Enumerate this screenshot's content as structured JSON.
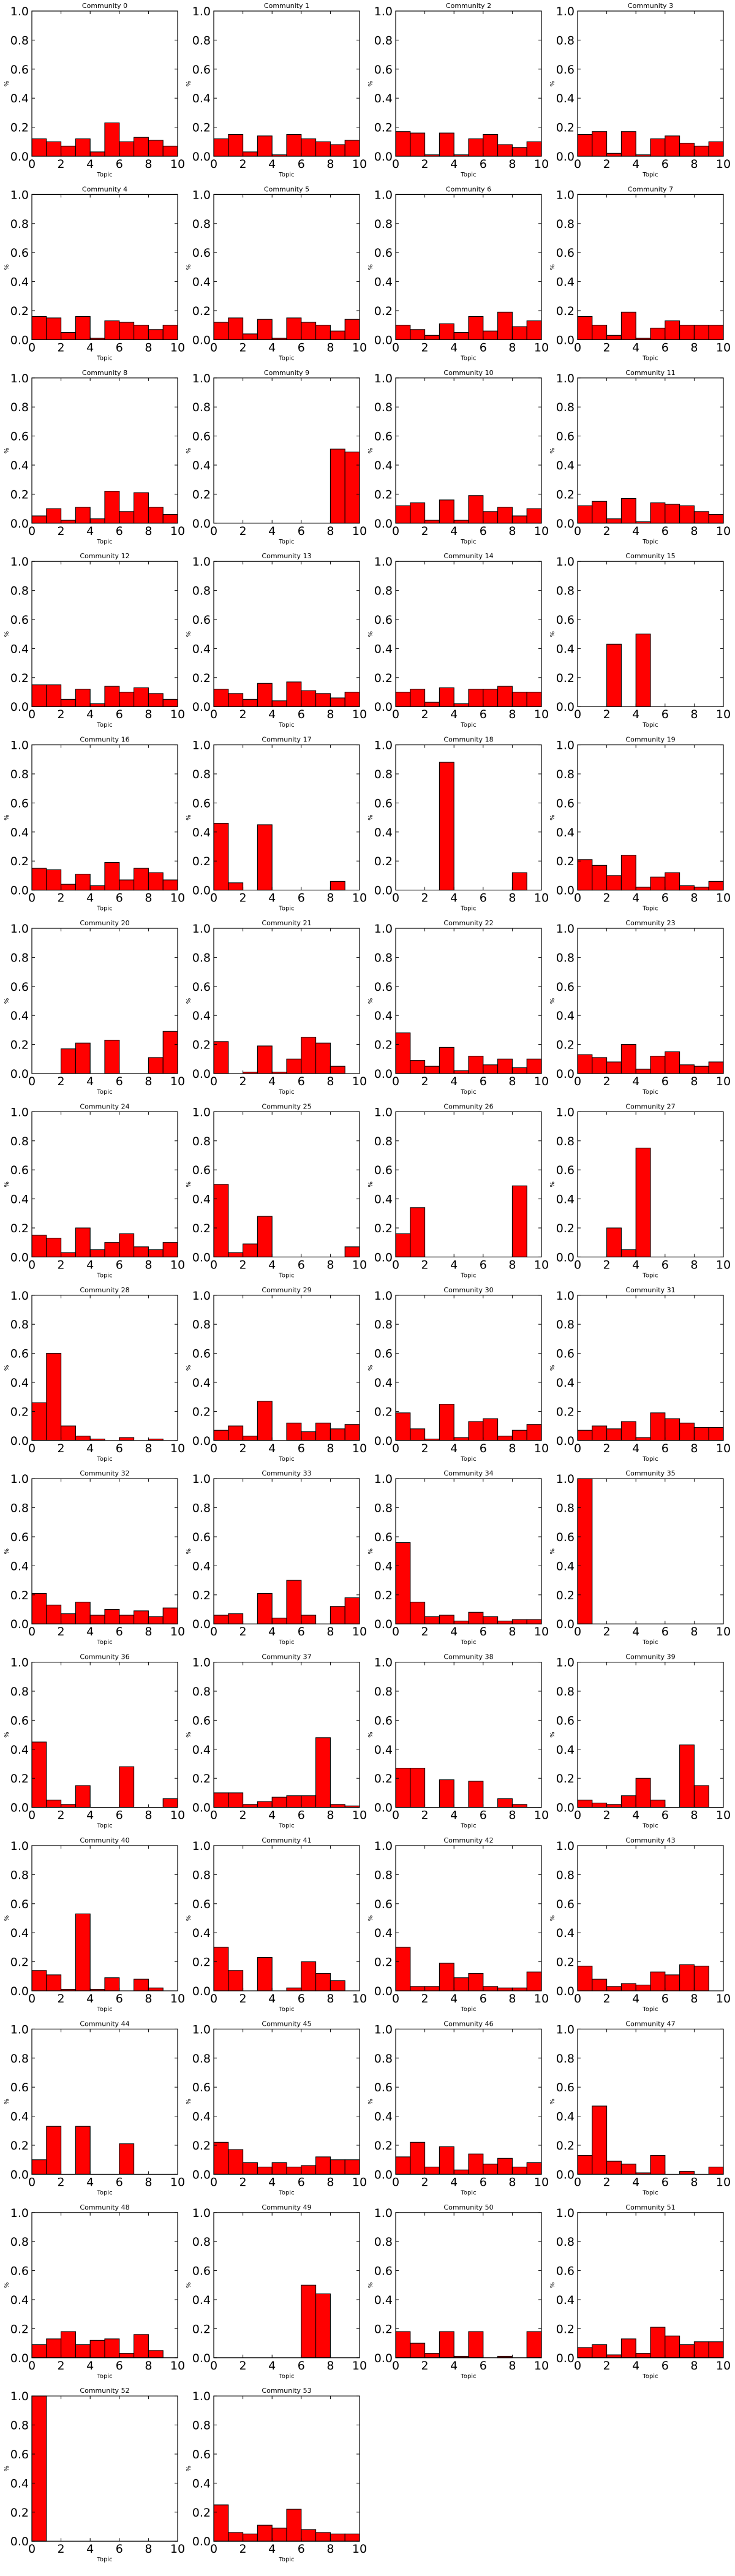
{
  "chart_data": {
    "type": "bar",
    "layout": "small-multiples grid, 4 columns",
    "xlabel": "Topic",
    "ylabel": "%",
    "xlim": [
      0,
      10
    ],
    "ylim": [
      0,
      1.0
    ],
    "xticks": [
      "0",
      "2",
      "4",
      "6",
      "8",
      "10"
    ],
    "yticks": [
      "0.0",
      "0.2",
      "0.4",
      "0.6",
      "0.8",
      "1.0"
    ],
    "bar_color": "#ff0000",
    "bar_edge": "#000000",
    "bins": [
      0,
      1,
      2,
      3,
      4,
      5,
      6,
      7,
      8,
      9
    ],
    "panels": [
      {
        "title": "Community 0",
        "values": [
          0.12,
          0.1,
          0.07,
          0.12,
          0.03,
          0.23,
          0.1,
          0.13,
          0.11,
          0.07
        ]
      },
      {
        "title": "Community 1",
        "values": [
          0.12,
          0.15,
          0.03,
          0.14,
          0.01,
          0.15,
          0.12,
          0.1,
          0.08,
          0.11
        ]
      },
      {
        "title": "Community 2",
        "values": [
          0.17,
          0.16,
          0.01,
          0.16,
          0.01,
          0.12,
          0.15,
          0.08,
          0.06,
          0.1
        ]
      },
      {
        "title": "Community 3",
        "values": [
          0.15,
          0.17,
          0.02,
          0.17,
          0.01,
          0.12,
          0.14,
          0.09,
          0.07,
          0.1
        ]
      },
      {
        "title": "Community 4",
        "values": [
          0.16,
          0.15,
          0.05,
          0.16,
          0.01,
          0.13,
          0.12,
          0.1,
          0.07,
          0.1
        ]
      },
      {
        "title": "Community 5",
        "values": [
          0.12,
          0.15,
          0.04,
          0.14,
          0.01,
          0.15,
          0.12,
          0.1,
          0.06,
          0.14
        ]
      },
      {
        "title": "Community 6",
        "values": [
          0.1,
          0.07,
          0.03,
          0.11,
          0.05,
          0.16,
          0.06,
          0.19,
          0.09,
          0.13
        ]
      },
      {
        "title": "Community 7",
        "values": [
          0.16,
          0.1,
          0.03,
          0.19,
          0.01,
          0.08,
          0.13,
          0.1,
          0.1,
          0.1
        ]
      },
      {
        "title": "Community 8",
        "values": [
          0.05,
          0.1,
          0.02,
          0.11,
          0.03,
          0.22,
          0.08,
          0.21,
          0.11,
          0.06
        ]
      },
      {
        "title": "Community 9",
        "values": [
          0,
          0,
          0,
          0,
          0,
          0,
          0,
          0,
          0.51,
          0.49
        ]
      },
      {
        "title": "Community 10",
        "values": [
          0.12,
          0.14,
          0.02,
          0.16,
          0.02,
          0.19,
          0.08,
          0.11,
          0.05,
          0.1
        ]
      },
      {
        "title": "Community 11",
        "values": [
          0.12,
          0.15,
          0.03,
          0.17,
          0.01,
          0.14,
          0.13,
          0.12,
          0.08,
          0.06
        ]
      },
      {
        "title": "Community 12",
        "values": [
          0.15,
          0.15,
          0.05,
          0.12,
          0.02,
          0.14,
          0.1,
          0.13,
          0.09,
          0.05
        ]
      },
      {
        "title": "Community 13",
        "values": [
          0.12,
          0.09,
          0.05,
          0.16,
          0.04,
          0.17,
          0.11,
          0.09,
          0.06,
          0.1
        ]
      },
      {
        "title": "Community 14",
        "values": [
          0.1,
          0.12,
          0.03,
          0.13,
          0.02,
          0.12,
          0.12,
          0.14,
          0.1,
          0.1
        ]
      },
      {
        "title": "Community 15",
        "values": [
          0,
          0,
          0.43,
          0,
          0.5,
          0,
          0,
          0,
          0,
          0
        ]
      },
      {
        "title": "Community 16",
        "values": [
          0.15,
          0.14,
          0.04,
          0.11,
          0.03,
          0.19,
          0.07,
          0.15,
          0.12,
          0.07
        ]
      },
      {
        "title": "Community 17",
        "values": [
          0.46,
          0.05,
          0,
          0.45,
          0,
          0,
          0,
          0,
          0.06,
          0
        ]
      },
      {
        "title": "Community 18",
        "values": [
          0,
          0,
          0,
          0.88,
          0,
          0,
          0,
          0,
          0.12,
          0
        ]
      },
      {
        "title": "Community 19",
        "values": [
          0.21,
          0.17,
          0.1,
          0.24,
          0.02,
          0.09,
          0.12,
          0.03,
          0.02,
          0.06
        ]
      },
      {
        "title": "Community 20",
        "values": [
          0,
          0,
          0.17,
          0.21,
          0,
          0.23,
          0,
          0,
          0.11,
          0.29
        ]
      },
      {
        "title": "Community 21",
        "values": [
          0.22,
          0,
          0.01,
          0.19,
          0.01,
          0.1,
          0.25,
          0.21,
          0.05,
          0
        ]
      },
      {
        "title": "Community 22",
        "values": [
          0.28,
          0.09,
          0.05,
          0.18,
          0.02,
          0.12,
          0.06,
          0.1,
          0.04,
          0.1
        ]
      },
      {
        "title": "Community 23",
        "values": [
          0.13,
          0.11,
          0.08,
          0.2,
          0.03,
          0.12,
          0.15,
          0.06,
          0.05,
          0.08
        ]
      },
      {
        "title": "Community 24",
        "values": [
          0.15,
          0.13,
          0.03,
          0.2,
          0.05,
          0.1,
          0.16,
          0.07,
          0.05,
          0.1
        ]
      },
      {
        "title": "Community 25",
        "values": [
          0.5,
          0.03,
          0.09,
          0.28,
          0,
          0,
          0,
          0,
          0,
          0.07
        ]
      },
      {
        "title": "Community 26",
        "values": [
          0.16,
          0.34,
          0,
          0,
          0,
          0,
          0,
          0,
          0.49,
          0
        ]
      },
      {
        "title": "Community 27",
        "values": [
          0,
          0,
          0.2,
          0.05,
          0.75,
          0,
          0,
          0,
          0,
          0
        ]
      },
      {
        "title": "Community 28",
        "values": [
          0.26,
          0.6,
          0.1,
          0.03,
          0.01,
          0,
          0.02,
          0,
          0.01,
          0
        ]
      },
      {
        "title": "Community 29",
        "values": [
          0.07,
          0.1,
          0.03,
          0.27,
          0,
          0.12,
          0.06,
          0.12,
          0.08,
          0.11
        ]
      },
      {
        "title": "Community 30",
        "values": [
          0.19,
          0.08,
          0.01,
          0.25,
          0.02,
          0.13,
          0.15,
          0.03,
          0.07,
          0.11
        ]
      },
      {
        "title": "Community 31",
        "values": [
          0.07,
          0.1,
          0.08,
          0.13,
          0.02,
          0.19,
          0.15,
          0.12,
          0.09,
          0.09
        ]
      },
      {
        "title": "Community 32",
        "values": [
          0.21,
          0.13,
          0.07,
          0.15,
          0.06,
          0.1,
          0.06,
          0.09,
          0.05,
          0.11
        ]
      },
      {
        "title": "Community 33",
        "values": [
          0.06,
          0.07,
          0,
          0.21,
          0.04,
          0.3,
          0.06,
          0,
          0.12,
          0.18
        ]
      },
      {
        "title": "Community 34",
        "values": [
          0.56,
          0.15,
          0.05,
          0.06,
          0.02,
          0.08,
          0.05,
          0.02,
          0.03,
          0.03
        ]
      },
      {
        "title": "Community 35",
        "values": [
          1.0,
          0,
          0,
          0,
          0,
          0,
          0,
          0,
          0,
          0
        ]
      },
      {
        "title": "Community 36",
        "values": [
          0.45,
          0.05,
          0.02,
          0.15,
          0,
          0,
          0.28,
          0,
          0,
          0.06
        ]
      },
      {
        "title": "Community 37",
        "values": [
          0.1,
          0.1,
          0.02,
          0.04,
          0.07,
          0.08,
          0.08,
          0.48,
          0.02,
          0.01
        ]
      },
      {
        "title": "Community 38",
        "values": [
          0.27,
          0.27,
          0,
          0.19,
          0,
          0.18,
          0,
          0.06,
          0.02,
          0
        ]
      },
      {
        "title": "Community 39",
        "values": [
          0.05,
          0.03,
          0.02,
          0.08,
          0.2,
          0.05,
          0,
          0.43,
          0.15,
          0
        ]
      },
      {
        "title": "Community 40",
        "values": [
          0.14,
          0.11,
          0.01,
          0.53,
          0.01,
          0.09,
          0,
          0.08,
          0.02,
          0
        ]
      },
      {
        "title": "Community 41",
        "values": [
          0.3,
          0.14,
          0,
          0.23,
          0,
          0.02,
          0.2,
          0.12,
          0.07,
          0
        ]
      },
      {
        "title": "Community 42",
        "values": [
          0.3,
          0.03,
          0.03,
          0.19,
          0.09,
          0.12,
          0.03,
          0.02,
          0.02,
          0.13
        ]
      },
      {
        "title": "Community 43",
        "values": [
          0.17,
          0.08,
          0.03,
          0.05,
          0.04,
          0.13,
          0.11,
          0.18,
          0.17,
          0
        ]
      },
      {
        "title": "Community 44",
        "values": [
          0.1,
          0.33,
          0,
          0.33,
          0,
          0,
          0.21,
          0,
          0,
          0
        ]
      },
      {
        "title": "Community 45",
        "values": [
          0.22,
          0.17,
          0.08,
          0.05,
          0.08,
          0.05,
          0.06,
          0.12,
          0.1,
          0.1
        ]
      },
      {
        "title": "Community 46",
        "values": [
          0.12,
          0.22,
          0.05,
          0.19,
          0.03,
          0.14,
          0.07,
          0.11,
          0.05,
          0.08
        ]
      },
      {
        "title": "Community 47",
        "values": [
          0.13,
          0.47,
          0.09,
          0.07,
          0.01,
          0.13,
          0,
          0.02,
          0,
          0.05
        ]
      },
      {
        "title": "Community 48",
        "values": [
          0.09,
          0.13,
          0.18,
          0.09,
          0.12,
          0.13,
          0.03,
          0.16,
          0.05,
          0
        ]
      },
      {
        "title": "Community 49",
        "values": [
          0,
          0,
          0,
          0,
          0,
          0,
          0.5,
          0.44,
          0,
          0
        ]
      },
      {
        "title": "Community 50",
        "values": [
          0.18,
          0.1,
          0.03,
          0.18,
          0.01,
          0.18,
          0,
          0.01,
          0,
          0.18
        ]
      },
      {
        "title": "Community 51",
        "values": [
          0.07,
          0.09,
          0.02,
          0.13,
          0.03,
          0.21,
          0.15,
          0.09,
          0.11,
          0.11
        ]
      },
      {
        "title": "Community 52",
        "values": [
          1.0,
          0,
          0,
          0,
          0,
          0,
          0,
          0,
          0,
          0
        ]
      },
      {
        "title": "Community 53",
        "values": [
          0.25,
          0.06,
          0.05,
          0.11,
          0.09,
          0.22,
          0.08,
          0.06,
          0.05,
          0.05
        ]
      }
    ]
  }
}
